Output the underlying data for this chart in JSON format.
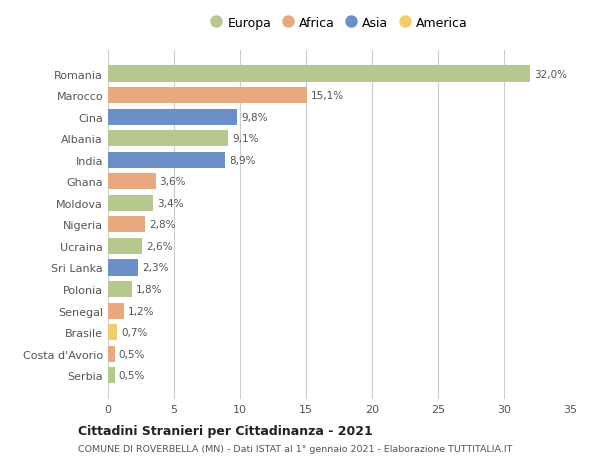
{
  "countries": [
    "Romania",
    "Marocco",
    "Cina",
    "Albania",
    "India",
    "Ghana",
    "Moldova",
    "Nigeria",
    "Ucraina",
    "Sri Lanka",
    "Polonia",
    "Senegal",
    "Brasile",
    "Costa d'Avorio",
    "Serbia"
  ],
  "values": [
    32.0,
    15.1,
    9.8,
    9.1,
    8.9,
    3.6,
    3.4,
    2.8,
    2.6,
    2.3,
    1.8,
    1.2,
    0.7,
    0.5,
    0.5
  ],
  "labels": [
    "32,0%",
    "15,1%",
    "9,8%",
    "9,1%",
    "8,9%",
    "3,6%",
    "3,4%",
    "2,8%",
    "2,6%",
    "2,3%",
    "1,8%",
    "1,2%",
    "0,7%",
    "0,5%",
    "0,5%"
  ],
  "continents": [
    "Europa",
    "Africa",
    "Asia",
    "Europa",
    "Asia",
    "Africa",
    "Europa",
    "Africa",
    "Europa",
    "Asia",
    "Europa",
    "Africa",
    "America",
    "Africa",
    "Europa"
  ],
  "colors": {
    "Europa": "#b5c98e",
    "Africa": "#e8a97e",
    "Asia": "#6d8fc7",
    "America": "#f0cc6e"
  },
  "legend_order": [
    "Europa",
    "Africa",
    "Asia",
    "America"
  ],
  "xlim": [
    0,
    35
  ],
  "xticks": [
    0,
    5,
    10,
    15,
    20,
    25,
    30,
    35
  ],
  "title1": "Cittadini Stranieri per Cittadinanza - 2021",
  "title2": "COMUNE DI ROVERBELLA (MN) - Dati ISTAT al 1° gennaio 2021 - Elaborazione TUTTITALIA.IT",
  "background_color": "#ffffff",
  "grid_color": "#cccccc",
  "bar_height": 0.75
}
